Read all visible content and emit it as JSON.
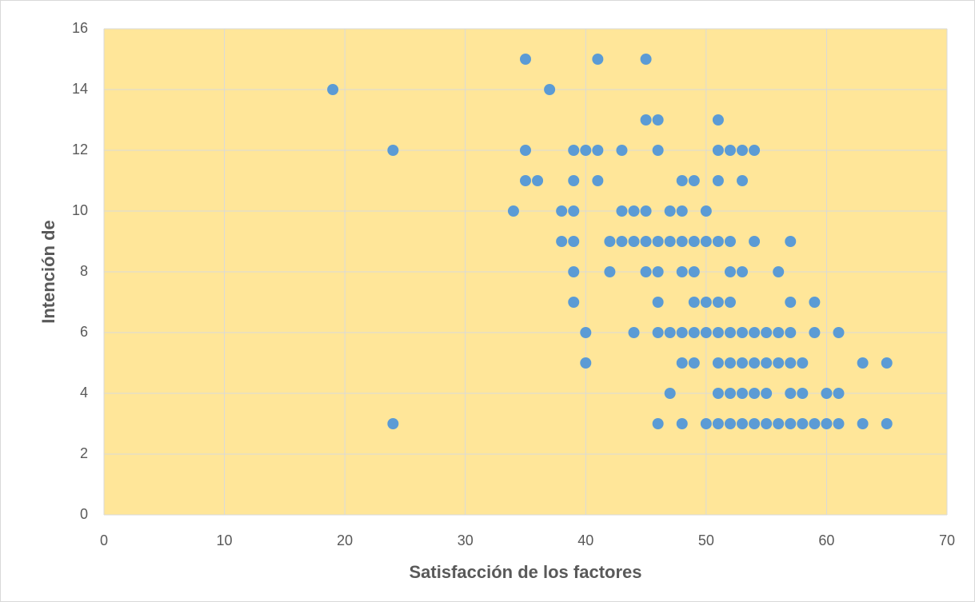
{
  "chart_data": {
    "type": "scatter",
    "xlabel": "Satisfacción de los factores",
    "ylabel": "Intención de",
    "color": "#5b9bd5",
    "x": [
      35,
      41,
      45,
      19,
      37,
      45,
      46,
      51,
      24,
      35,
      39,
      40,
      41,
      43,
      46,
      51,
      52,
      53,
      54,
      35,
      36,
      39,
      41,
      48,
      49,
      51,
      53,
      34,
      38,
      39,
      43,
      44,
      45,
      47,
      48,
      50,
      38,
      39,
      42,
      43,
      44,
      45,
      46,
      47,
      48,
      49,
      50,
      51,
      52,
      54,
      57,
      39,
      42,
      45,
      46,
      48,
      49,
      52,
      53,
      56,
      39,
      46,
      49,
      50,
      51,
      52,
      57,
      59,
      40,
      44,
      46,
      47,
      48,
      49,
      50,
      51,
      52,
      53,
      54,
      55,
      56,
      57,
      59,
      61,
      40,
      48,
      49,
      51,
      52,
      53,
      54,
      55,
      56,
      57,
      58,
      63,
      65,
      47,
      51,
      52,
      53,
      54,
      55,
      57,
      58,
      60,
      61,
      24,
      46,
      48,
      50,
      51,
      52,
      53,
      54,
      55,
      56,
      57,
      58,
      59,
      60,
      61,
      63,
      65
    ],
    "values": [
      15,
      15,
      15,
      14,
      14,
      13,
      13,
      13,
      12,
      12,
      12,
      12,
      12,
      12,
      12,
      12,
      12,
      12,
      12,
      11,
      11,
      11,
      11,
      11,
      11,
      11,
      11,
      10,
      10,
      10,
      10,
      10,
      10,
      10,
      10,
      10,
      9,
      9,
      9,
      9,
      9,
      9,
      9,
      9,
      9,
      9,
      9,
      9,
      9,
      9,
      9,
      8,
      8,
      8,
      8,
      8,
      8,
      8,
      8,
      8,
      7,
      7,
      7,
      7,
      7,
      7,
      7,
      7,
      6,
      6,
      6,
      6,
      6,
      6,
      6,
      6,
      6,
      6,
      6,
      6,
      6,
      6,
      6,
      6,
      5,
      5,
      5,
      5,
      5,
      5,
      5,
      5,
      5,
      5,
      5,
      5,
      5,
      4,
      4,
      4,
      4,
      4,
      4,
      4,
      4,
      4,
      4,
      3,
      3,
      3,
      3,
      3,
      3,
      3,
      3,
      3,
      3,
      3,
      3,
      3,
      3,
      3,
      3,
      3
    ],
    "xlim": [
      0,
      70
    ],
    "xticks": [
      0,
      10,
      20,
      30,
      40,
      50,
      60,
      70
    ],
    "ylim": [
      0,
      16
    ],
    "yticks": [
      0,
      2,
      4,
      6,
      8,
      10,
      12,
      14,
      16
    ],
    "grid": true,
    "plot_background": "#ffe699"
  }
}
